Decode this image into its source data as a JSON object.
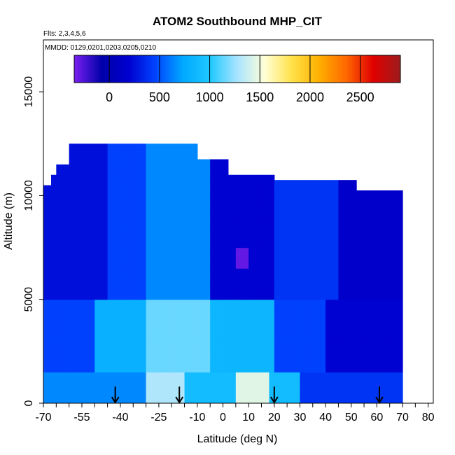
{
  "chart_data": {
    "type": "heatmap",
    "title": "ATOM2 Southbound MHP_CIT",
    "flights_note": "Flts: 2,3,4,5,6",
    "dates_note": "MMDD: 0129,0201,0203,0205,0210",
    "xlabel": "Latitude (deg N)",
    "ylabel": "Altitude (m)",
    "xlim": [
      -70,
      82
    ],
    "ylim": [
      0,
      17500
    ],
    "x_ticks": [
      -70,
      -55,
      -40,
      -25,
      -10,
      0,
      10,
      20,
      30,
      40,
      50,
      60,
      70,
      80
    ],
    "x_minor_step": 5,
    "y_ticks": [
      0,
      5000,
      10000,
      15000
    ],
    "colorbar": {
      "range": [
        -350,
        2900
      ],
      "ticks": [
        0,
        500,
        1000,
        1500,
        2000,
        2500
      ],
      "colors": [
        "#7a1ff0",
        "#0000a8",
        "#0000d0",
        "#0044ff",
        "#00a8ff",
        "#1fc8ff",
        "#a8e4ff",
        "#ffffd8",
        "#ffe24a",
        "#ffb000",
        "#ff6800",
        "#e00000",
        "#9c1c1c"
      ]
    },
    "profile_columns": [
      {
        "lat_range": [
          -70,
          -67
        ],
        "alt_top": 10500
      },
      {
        "lat_range": [
          -67,
          -65
        ],
        "alt_top": 11000
      },
      {
        "lat_range": [
          -65,
          -60
        ],
        "alt_top": 11500
      },
      {
        "lat_range": [
          -60,
          -50
        ],
        "alt_top": 12400
      },
      {
        "lat_range": [
          -50,
          -27
        ],
        "alt_top": 12400
      },
      {
        "lat_range": [
          -27,
          -10
        ],
        "alt_top": 12400
      },
      {
        "lat_range": [
          -10,
          2
        ],
        "alt_top": 11800
      },
      {
        "lat_range": [
          2,
          20
        ],
        "alt_top": 11000
      },
      {
        "lat_range": [
          20,
          52
        ],
        "alt_top": 10800
      },
      {
        "lat_range": [
          52,
          70
        ],
        "alt_top": 10300
      }
    ],
    "value_field": [
      {
        "lat_range": [
          -70,
          -30
        ],
        "alt_range": [
          0,
          1500
        ],
        "value": 650
      },
      {
        "lat_range": [
          -30,
          -15
        ],
        "alt_range": [
          0,
          1500
        ],
        "value": 1300
      },
      {
        "lat_range": [
          -15,
          5
        ],
        "alt_range": [
          0,
          1500
        ],
        "value": 900
      },
      {
        "lat_range": [
          5,
          18
        ],
        "alt_range": [
          0,
          1500
        ],
        "value": 1450
      },
      {
        "lat_range": [
          18,
          30
        ],
        "alt_range": [
          0,
          1500
        ],
        "value": 900
      },
      {
        "lat_range": [
          30,
          70
        ],
        "alt_range": [
          0,
          1500
        ],
        "value": 400
      },
      {
        "lat_range": [
          -70,
          -50
        ],
        "alt_range": [
          1500,
          5000
        ],
        "value": 450
      },
      {
        "lat_range": [
          -50,
          -30
        ],
        "alt_range": [
          1500,
          5000
        ],
        "value": 800
      },
      {
        "lat_range": [
          -30,
          -5
        ],
        "alt_range": [
          1500,
          5000
        ],
        "value": 1150
      },
      {
        "lat_range": [
          -5,
          20
        ],
        "alt_range": [
          1500,
          5000
        ],
        "value": 850
      },
      {
        "lat_range": [
          20,
          40
        ],
        "alt_range": [
          1500,
          5000
        ],
        "value": 450
      },
      {
        "lat_range": [
          40,
          70
        ],
        "alt_range": [
          1500,
          5000
        ],
        "value": 200
      },
      {
        "lat_range": [
          -70,
          -45
        ],
        "alt_range": [
          5000,
          12500
        ],
        "value": 250
      },
      {
        "lat_range": [
          -45,
          -30
        ],
        "alt_range": [
          5000,
          12500
        ],
        "value": 450
      },
      {
        "lat_range": [
          -30,
          -5
        ],
        "alt_range": [
          5000,
          12500
        ],
        "value": 650
      },
      {
        "lat_range": [
          -5,
          20
        ],
        "alt_range": [
          5000,
          12500
        ],
        "value": 200
      },
      {
        "lat_range": [
          20,
          45
        ],
        "alt_range": [
          5000,
          12500
        ],
        "value": 400
      },
      {
        "lat_range": [
          45,
          70
        ],
        "alt_range": [
          5000,
          12500
        ],
        "value": 150
      },
      {
        "lat_range": [
          5,
          10
        ],
        "alt_range": [
          6500,
          7500
        ],
        "value": -300
      }
    ],
    "markers": [
      {
        "lat": -42,
        "alt_range": [
          0,
          800
        ]
      },
      {
        "lat": -17,
        "alt_range": [
          0,
          800
        ]
      },
      {
        "lat": 20,
        "alt_range": [
          0,
          800
        ]
      },
      {
        "lat": 61,
        "alt_range": [
          0,
          800
        ]
      }
    ]
  }
}
